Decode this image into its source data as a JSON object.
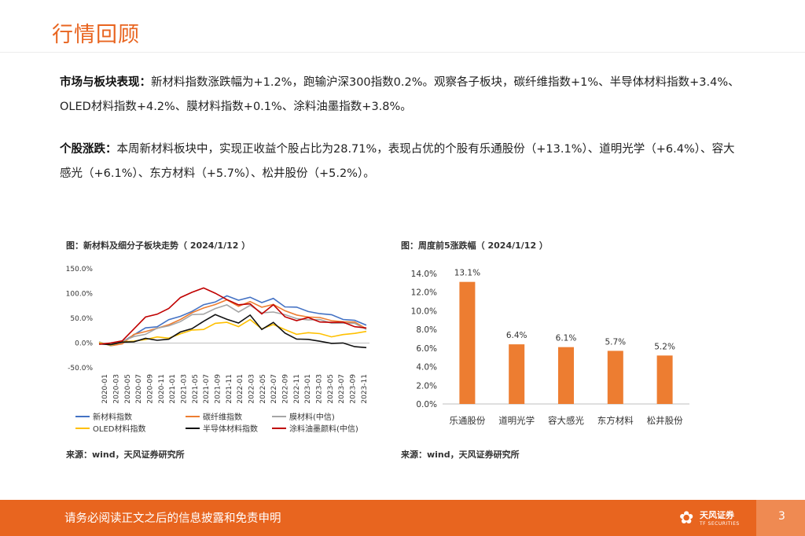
{
  "header": {
    "title": "行情回顾"
  },
  "paragraphs": {
    "p1_label": "市场与板块表现：",
    "p1_text": "新材料指数涨跌幅为+1.2%，跑输沪深300指数0.2%。观察各子板块，碳纤维指数+1%、半导体材料指数+3.4%、OLED材料指数+4.2%、膜材料指数+0.1%、涂料油墨指数+3.8%。",
    "p2_label": "个股涨跌：",
    "p2_text": "本周新材料板块中，实现正收益个股占比为28.71%，表现占优的个股有乐通股份（+13.1%）、道明光学（+6.4%）、容大感光（+6.1%）、东方材料（+5.7%）、松井股份（+5.2%）。"
  },
  "figures": {
    "left_title": "图：新材料及细分子板块走势（ 2024/1/12 ）",
    "left_source": "来源：wind，天风证券研究所",
    "right_title": "图：周度前5涨跌幅（ 2024/1/12 ）",
    "right_source": "来源：wind，天风证券研究所"
  },
  "chart_data": [
    {
      "type": "line",
      "title": "新材料及细分子板块走势（ 2024/1/12 ）",
      "ylim": [
        -0.5,
        1.5
      ],
      "y_ticks": [
        "150.0%",
        "100.0%",
        "50.0%",
        "0.0%",
        "-50.0%"
      ],
      "y_tick_values": [
        1.5,
        1.0,
        0.5,
        0.0,
        -0.5
      ],
      "x_ticks": [
        "2020-01",
        "2020-03",
        "2020-05",
        "2020-07",
        "2020-09",
        "2020-11",
        "2021-01",
        "2021-03",
        "2021-05",
        "2021-07",
        "2021-09",
        "2021-11",
        "2022-01",
        "2022-03",
        "2022-05",
        "2022-07",
        "2022-09",
        "2022-11",
        "2023-01",
        "2023-03",
        "2023-05",
        "2023-07",
        "2023-09",
        "2023-11"
      ],
      "series": [
        {
          "name": "新材料指数",
          "color": "#4472c4",
          "values": [
            0.0,
            -0.05,
            0.05,
            0.15,
            0.3,
            0.35,
            0.45,
            0.55,
            0.65,
            0.75,
            0.85,
            0.95,
            0.85,
            0.95,
            0.8,
            0.9,
            0.75,
            0.7,
            0.65,
            0.6,
            0.55,
            0.5,
            0.45,
            0.35
          ]
        },
        {
          "name": "碳纤维指数",
          "color": "#ed7d31",
          "values": [
            0.0,
            -0.05,
            0.0,
            0.15,
            0.25,
            0.3,
            0.35,
            0.5,
            0.6,
            0.7,
            0.8,
            0.85,
            0.75,
            0.85,
            0.7,
            0.8,
            0.65,
            0.55,
            0.55,
            0.5,
            0.45,
            0.45,
            0.4,
            0.3
          ]
        },
        {
          "name": "膜材料(中信)",
          "color": "#a5a5a5",
          "values": [
            0.0,
            -0.03,
            0.03,
            0.12,
            0.2,
            0.28,
            0.35,
            0.45,
            0.55,
            0.6,
            0.7,
            0.75,
            0.65,
            0.75,
            0.6,
            0.65,
            0.55,
            0.5,
            0.48,
            0.45,
            0.42,
            0.4,
            0.38,
            0.3
          ]
        },
        {
          "name": "OLED材料指数",
          "color": "#ffc000",
          "values": [
            0.0,
            -0.02,
            0.0,
            0.05,
            0.08,
            0.1,
            0.12,
            0.18,
            0.25,
            0.3,
            0.38,
            0.42,
            0.35,
            0.45,
            0.3,
            0.38,
            0.25,
            0.2,
            0.2,
            0.18,
            0.15,
            0.15,
            0.2,
            0.25
          ]
        },
        {
          "name": "半导体材料指数",
          "color": "#111111",
          "values": [
            0.0,
            -0.03,
            0.0,
            0.05,
            0.08,
            0.05,
            0.1,
            0.2,
            0.3,
            0.45,
            0.55,
            0.5,
            0.4,
            0.55,
            0.3,
            0.4,
            0.2,
            0.1,
            0.05,
            0.05,
            0.0,
            -0.02,
            -0.05,
            -0.1
          ]
        },
        {
          "name": "涂料油墨颜料(中信)",
          "color": "#c00000",
          "values": [
            0.0,
            -0.02,
            0.05,
            0.3,
            0.5,
            0.6,
            0.7,
            0.9,
            1.05,
            1.1,
            1.0,
            0.9,
            0.75,
            0.8,
            0.6,
            0.75,
            0.55,
            0.45,
            0.5,
            0.45,
            0.4,
            0.42,
            0.35,
            0.28
          ]
        }
      ]
    },
    {
      "type": "bar",
      "title": "周度前5涨跌幅（ 2024/1/12 ）",
      "categories": [
        "乐通股份",
        "道明光学",
        "容大感光",
        "东方材料",
        "松井股份"
      ],
      "values": [
        13.1,
        6.4,
        6.1,
        5.7,
        5.2
      ],
      "value_labels": [
        "13.1%",
        "6.4%",
        "6.1%",
        "5.7%",
        "5.2%"
      ],
      "ylim": [
        0,
        14
      ],
      "y_ticks": [
        "14.0%",
        "12.0%",
        "10.0%",
        "8.0%",
        "6.0%",
        "4.0%",
        "2.0%",
        "0.0%"
      ],
      "y_tick_values": [
        14,
        12,
        10,
        8,
        6,
        4,
        2,
        0
      ],
      "color": "#ed7d31"
    }
  ],
  "footer": {
    "disclaimer": "请务必阅读正文之后的信息披露和免责申明",
    "logo_cn": "天风证券",
    "logo_en": "TF SECURITIES",
    "page_number": "3"
  }
}
